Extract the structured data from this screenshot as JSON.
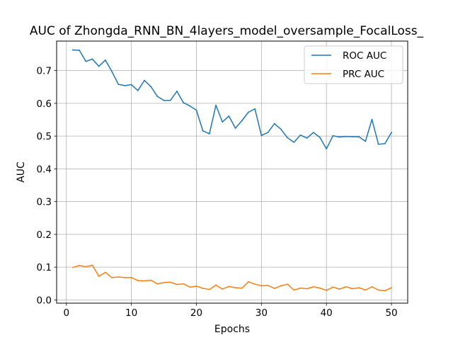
{
  "chart_data": {
    "type": "line",
    "title": "AUC of Zhongda_RNN_BN_4layers_model_oversample_FocalLoss_",
    "xlabel": "Epochs",
    "ylabel": "AUC",
    "xlim": [
      -1.5,
      52.5
    ],
    "ylim": [
      -0.01,
      0.79
    ],
    "xticks": [
      0,
      10,
      20,
      30,
      40,
      50
    ],
    "yticks": [
      0.0,
      0.1,
      0.2,
      0.3,
      0.4,
      0.5,
      0.6,
      0.7
    ],
    "xtick_labels": [
      "0",
      "10",
      "20",
      "30",
      "40",
      "50"
    ],
    "ytick_labels": [
      "0.0",
      "0.1",
      "0.2",
      "0.3",
      "0.4",
      "0.5",
      "0.6",
      "0.7"
    ],
    "grid": true,
    "legend_position": "top-right",
    "x": [
      1,
      2,
      3,
      4,
      5,
      6,
      7,
      8,
      9,
      10,
      11,
      12,
      13,
      14,
      15,
      16,
      17,
      18,
      19,
      20,
      21,
      22,
      23,
      24,
      25,
      26,
      27,
      28,
      29,
      30,
      31,
      32,
      33,
      34,
      35,
      36,
      37,
      38,
      39,
      40,
      41,
      42,
      43,
      44,
      45,
      46,
      47,
      48,
      49,
      50
    ],
    "series": [
      {
        "name": "ROC AUC",
        "color": "#1f77b4",
        "values": [
          0.763,
          0.762,
          0.728,
          0.735,
          0.713,
          0.732,
          0.697,
          0.658,
          0.654,
          0.657,
          0.639,
          0.67,
          0.651,
          0.621,
          0.609,
          0.609,
          0.637,
          0.602,
          0.592,
          0.579,
          0.516,
          0.507,
          0.594,
          0.543,
          0.561,
          0.524,
          0.547,
          0.573,
          0.583,
          0.502,
          0.511,
          0.538,
          0.521,
          0.495,
          0.481,
          0.503,
          0.494,
          0.511,
          0.496,
          0.461,
          0.501,
          0.497,
          0.499,
          0.498,
          0.498,
          0.484,
          0.551,
          0.475,
          0.477,
          0.511
        ]
      },
      {
        "name": "PRC AUC",
        "color": "#ff7f0e",
        "values": [
          0.099,
          0.105,
          0.101,
          0.106,
          0.072,
          0.084,
          0.068,
          0.07,
          0.068,
          0.068,
          0.059,
          0.058,
          0.06,
          0.049,
          0.053,
          0.054,
          0.047,
          0.049,
          0.039,
          0.042,
          0.035,
          0.032,
          0.045,
          0.033,
          0.041,
          0.037,
          0.036,
          0.055,
          0.048,
          0.043,
          0.044,
          0.035,
          0.043,
          0.048,
          0.03,
          0.036,
          0.034,
          0.04,
          0.036,
          0.029,
          0.039,
          0.033,
          0.04,
          0.034,
          0.037,
          0.03,
          0.04,
          0.03,
          0.028,
          0.037
        ]
      }
    ]
  }
}
